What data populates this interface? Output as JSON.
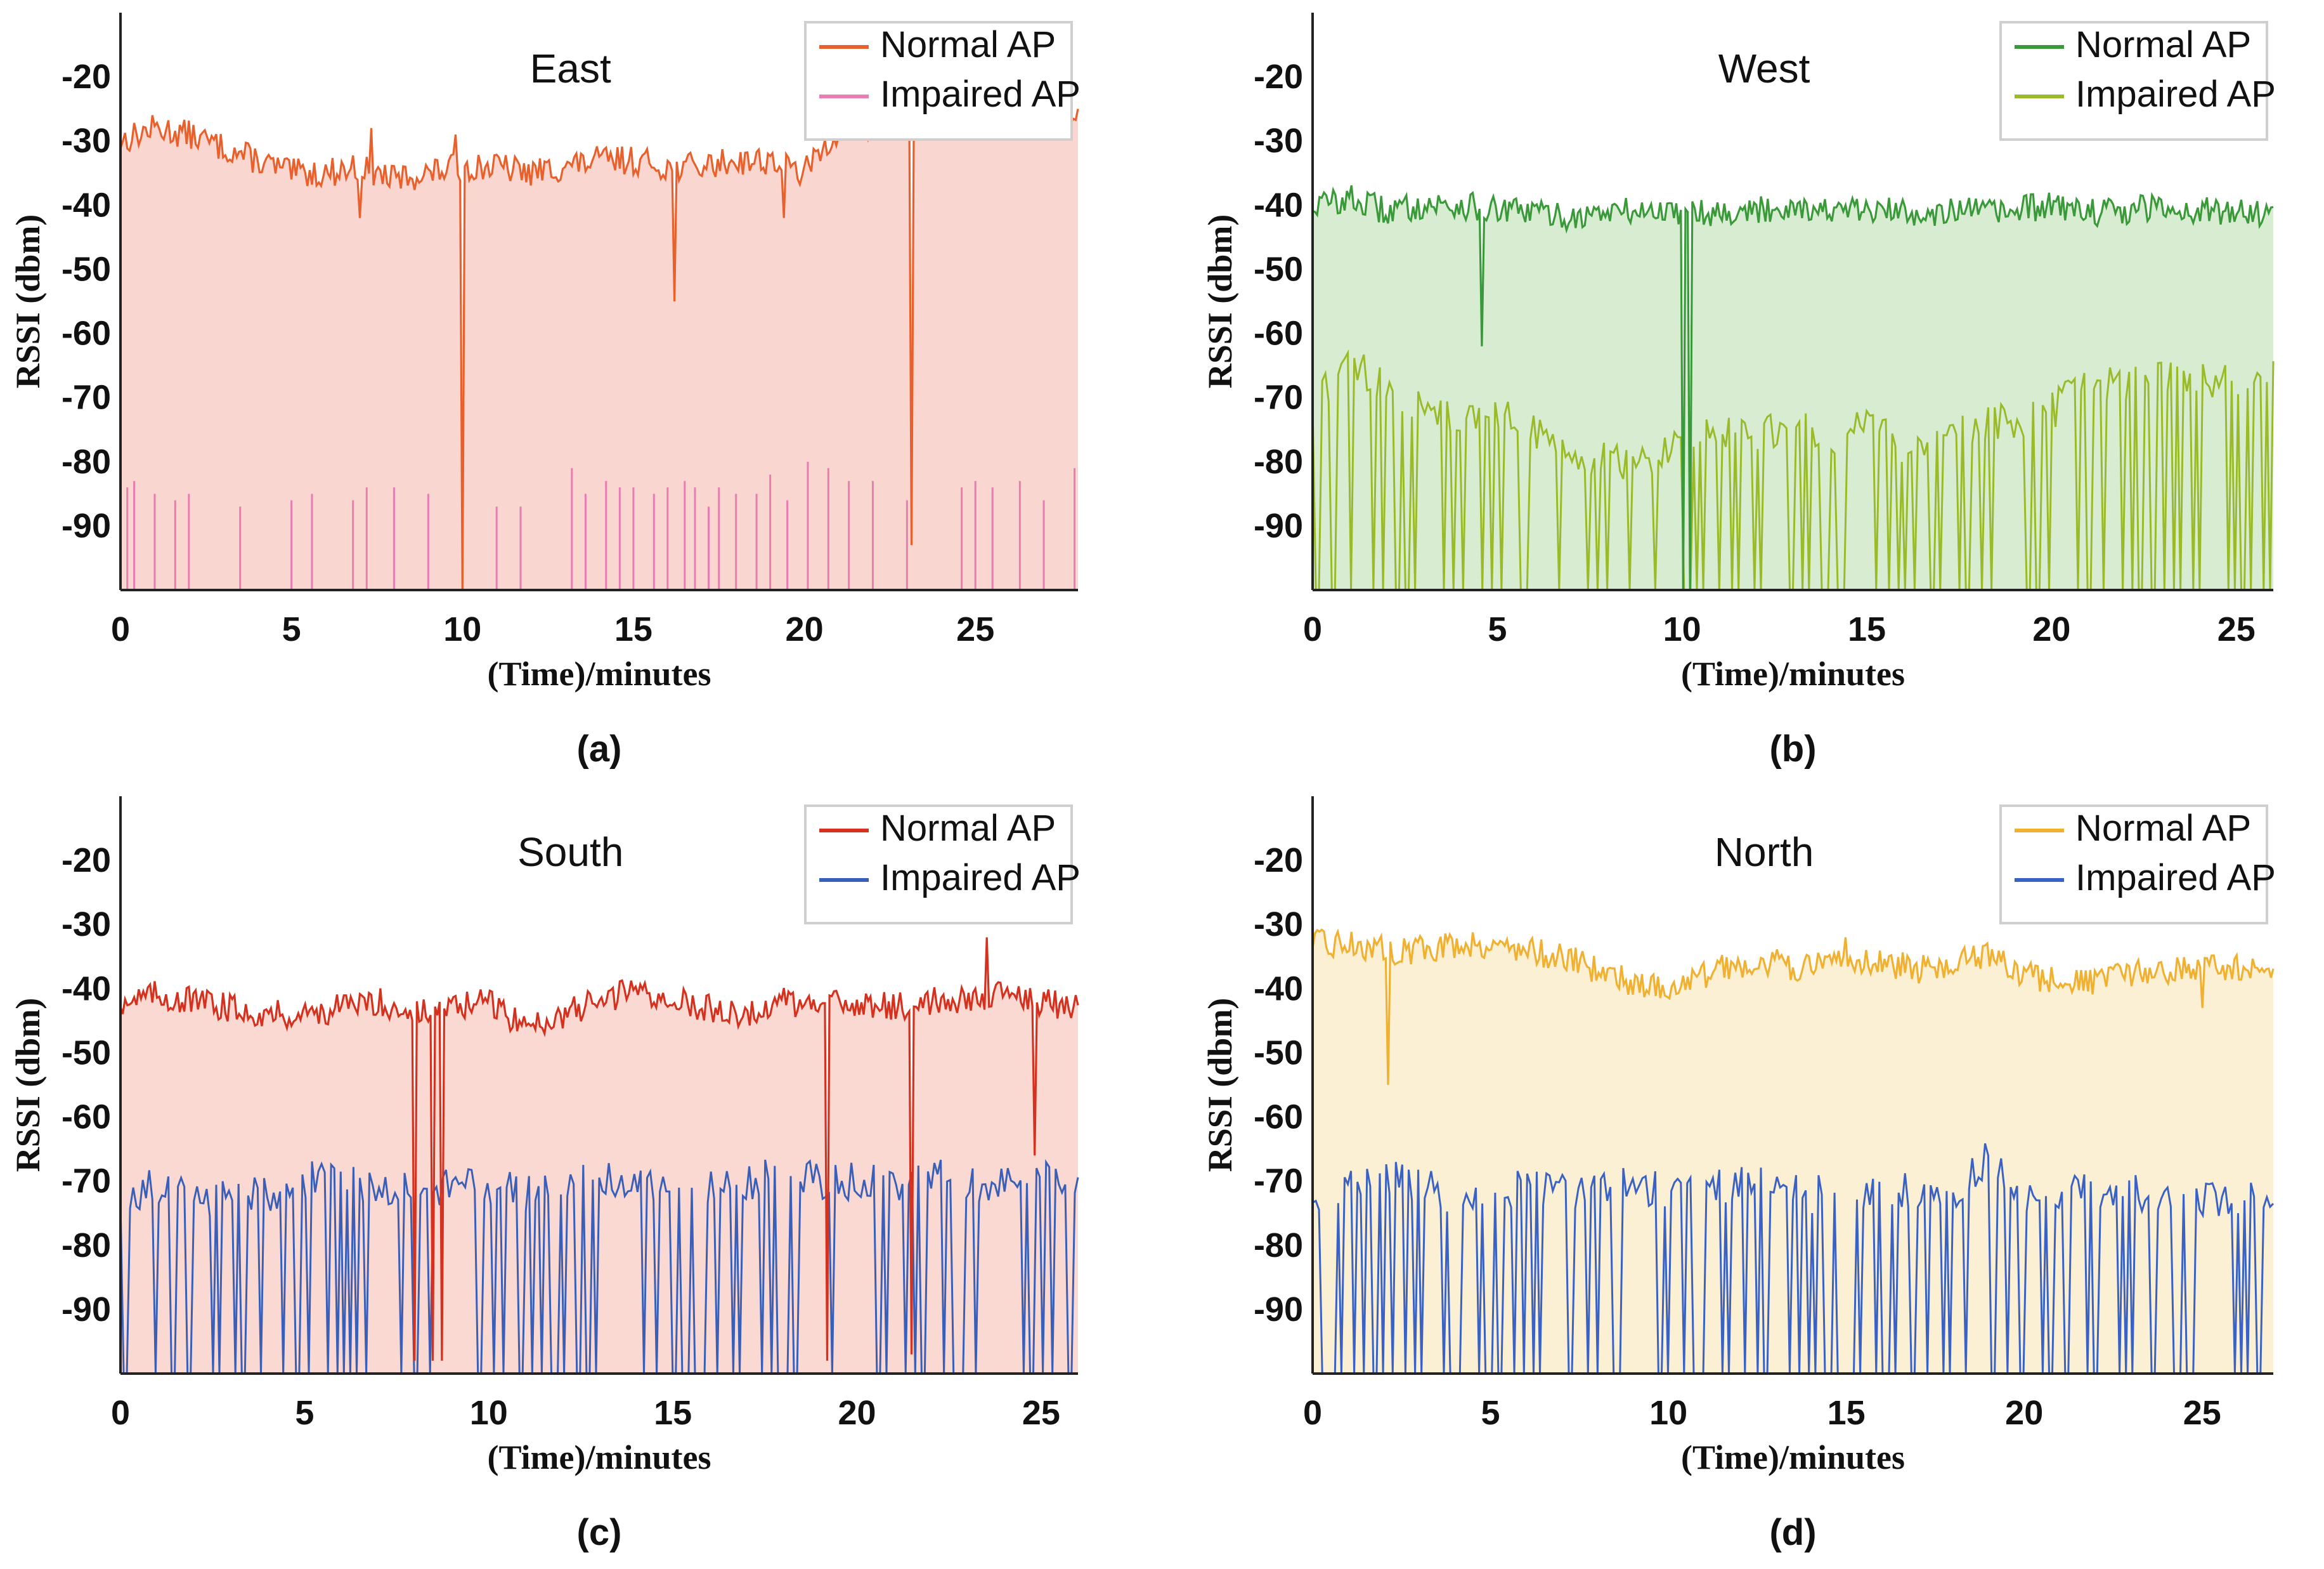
{
  "chart_data": [
    {
      "type": "line",
      "caption": "(a)",
      "title": "East",
      "xlabel": "(Time)/minutes",
      "ylabel": "RSSI  (dbm)",
      "xlim": [
        0,
        28
      ],
      "ylim": [
        -100,
        -10
      ],
      "x_ticks": [
        0,
        5,
        10,
        15,
        20,
        25
      ],
      "y_ticks": [
        -20,
        -30,
        -40,
        -50,
        -60,
        -70,
        -80,
        -90
      ],
      "legend_position": "top-right",
      "fill_color": "#f9d6cf",
      "series": [
        {
          "name": "Normal AP",
          "color": "#e8602c",
          "style": "noisy",
          "x": [
            0,
            1,
            2,
            3,
            4,
            5,
            6,
            7,
            8,
            9,
            10,
            11,
            12,
            13,
            14,
            15,
            16,
            17,
            18,
            19,
            20,
            21,
            22,
            23,
            24,
            25,
            26,
            27,
            28
          ],
          "y": [
            -30,
            -28,
            -29,
            -31,
            -33,
            -35,
            -35,
            -34,
            -36,
            -35,
            -34,
            -34,
            -35,
            -34,
            -33,
            -33,
            -34,
            -34,
            -33,
            -33,
            -35,
            -28,
            -28,
            -27,
            -27,
            -27,
            -27,
            -27,
            -26
          ],
          "spikes": [
            {
              "x": 7.0,
              "y": -42
            },
            {
              "x": 7.3,
              "y": -28
            },
            {
              "x": 9.8,
              "y": -29
            },
            {
              "x": 10.0,
              "y": -100
            },
            {
              "x": 16.2,
              "y": -55
            },
            {
              "x": 19.4,
              "y": -42
            },
            {
              "x": 23.1,
              "y": -93
            }
          ]
        },
        {
          "name": "Impaired AP",
          "color": "#e87db3",
          "style": "sparse",
          "base": -100,
          "x": [
            0.2,
            0.4,
            1.0,
            1.6,
            2.0,
            3.5,
            5.0,
            5.6,
            6.8,
            7.2,
            8.0,
            9.0,
            10.0,
            11.0,
            11.7,
            13.2,
            13.6,
            14.2,
            14.6,
            15.0,
            15.6,
            16.0,
            16.5,
            16.8,
            17.2,
            17.5,
            18.0,
            18.6,
            19.0,
            19.5,
            20.1,
            20.7,
            21.3,
            22.0,
            23.0,
            24.6,
            25.0,
            25.5,
            26.3,
            27.0,
            27.9
          ],
          "y": [
            -84,
            -83,
            -85,
            -86,
            -85,
            -87,
            -86,
            -85,
            -86,
            -84,
            -84,
            -85,
            -86,
            -87,
            -87,
            -81,
            -85,
            -83,
            -84,
            -84,
            -85,
            -84,
            -83,
            -84,
            -87,
            -84,
            -85,
            -85,
            -82,
            -86,
            -80,
            -81,
            -83,
            -83,
            -86,
            -84,
            -83,
            -84,
            -83,
            -86,
            -81
          ]
        }
      ]
    },
    {
      "type": "line",
      "caption": "(b)",
      "title": "West",
      "xlabel": "(Time)/minutes",
      "ylabel": "RSSI  (dbm)",
      "xlim": [
        0,
        26
      ],
      "ylim": [
        -100,
        -10
      ],
      "x_ticks": [
        0,
        5,
        10,
        15,
        20,
        25
      ],
      "y_ticks": [
        -20,
        -30,
        -40,
        -50,
        -60,
        -70,
        -80,
        -90
      ],
      "legend_position": "top-right",
      "fill_color": "#d8ecd2",
      "series": [
        {
          "name": "Normal AP",
          "color": "#3a9a3a",
          "style": "noisy",
          "x": [
            0,
            1,
            2,
            3,
            4,
            5,
            6,
            7,
            8,
            9,
            10,
            11,
            12,
            13,
            14,
            15,
            16,
            17,
            18,
            19,
            20,
            21,
            22,
            23,
            24,
            25,
            26
          ],
          "y": [
            -40,
            -39,
            -41,
            -40,
            -40,
            -41,
            -41,
            -42,
            -41,
            -41,
            -41,
            -41,
            -41,
            -40,
            -41,
            -41,
            -41,
            -41,
            -41,
            -41,
            -40,
            -41,
            -41,
            -40,
            -41,
            -41,
            -41
          ],
          "spikes": [
            {
              "x": 4.6,
              "y": -62
            },
            {
              "x": 10.0,
              "y": -100
            },
            {
              "x": 10.2,
              "y": -100
            }
          ]
        },
        {
          "name": "Impaired AP",
          "color": "#9aba2a",
          "style": "dense",
          "base": -100,
          "x": [
            0,
            1,
            2,
            3,
            4,
            5,
            6,
            7,
            8,
            9,
            10,
            11,
            12,
            13,
            14,
            15,
            16,
            17,
            18,
            19,
            20,
            21,
            22,
            23,
            24,
            25,
            26
          ],
          "y": [
            -70,
            -65,
            -68,
            -72,
            -73,
            -73,
            -75,
            -78,
            -80,
            -80,
            -76,
            -75,
            -76,
            -75,
            -76,
            -74,
            -78,
            -76,
            -74,
            -74,
            -72,
            -68,
            -68,
            -66,
            -67,
            -67,
            -67
          ]
        }
      ]
    },
    {
      "type": "line",
      "caption": "(c)",
      "title": "South",
      "xlabel": "(Time)/minutes",
      "ylabel": "RSSI  (dbm)",
      "xlim": [
        0,
        26
      ],
      "ylim": [
        -100,
        -10
      ],
      "x_ticks": [
        0,
        5,
        10,
        15,
        20,
        25
      ],
      "y_ticks": [
        -20,
        -30,
        -40,
        -50,
        -60,
        -70,
        -80,
        -90
      ],
      "legend_position": "top-right",
      "fill_color": "#fbd9d3",
      "series": [
        {
          "name": "Normal AP",
          "color": "#d4311e",
          "style": "noisy",
          "x": [
            0,
            1,
            2,
            3,
            4,
            5,
            6,
            7,
            8,
            9,
            10,
            11,
            12,
            13,
            14,
            15,
            16,
            17,
            18,
            19,
            20,
            21,
            22,
            23,
            24,
            25,
            26
          ],
          "y": [
            -42,
            -41,
            -42,
            -43,
            -44,
            -44,
            -43,
            -42,
            -44,
            -43,
            -42,
            -46,
            -44,
            -42,
            -40,
            -42,
            -43,
            -44,
            -42,
            -43,
            -42,
            -43,
            -42,
            -42,
            -40,
            -42,
            -43
          ],
          "spikes": [
            {
              "x": 8.0,
              "y": -98
            },
            {
              "x": 8.5,
              "y": -98
            },
            {
              "x": 8.7,
              "y": -98
            },
            {
              "x": 19.2,
              "y": -98
            },
            {
              "x": 21.5,
              "y": -97
            },
            {
              "x": 23.5,
              "y": -32
            },
            {
              "x": 24.8,
              "y": -66
            }
          ]
        },
        {
          "name": "Impaired AP",
          "color": "#3a5fb8",
          "style": "dense",
          "base": -100,
          "x": [
            0,
            1,
            2,
            3,
            4,
            5,
            6,
            7,
            8,
            9,
            10,
            11,
            12,
            13,
            14,
            15,
            16,
            17,
            18,
            19,
            20,
            21,
            22,
            23,
            24,
            25,
            26
          ],
          "y": [
            -72,
            -71,
            -73,
            -72,
            -72,
            -70,
            -69,
            -71,
            -72,
            -71,
            -71,
            -72,
            -71,
            -70,
            -70,
            -70,
            -71,
            -70,
            -69,
            -70,
            -70,
            -71,
            -69,
            -70,
            -71,
            -70,
            -70
          ]
        }
      ]
    },
    {
      "type": "line",
      "caption": "(d)",
      "title": "North",
      "xlabel": "(Time)/minutes",
      "ylabel": "RSSI  (dbm)",
      "xlim": [
        0,
        27
      ],
      "ylim": [
        -100,
        -10
      ],
      "x_ticks": [
        0,
        5,
        10,
        15,
        20,
        25
      ],
      "y_ticks": [
        -20,
        -30,
        -40,
        -50,
        -60,
        -70,
        -80,
        -90
      ],
      "legend_position": "top-right",
      "fill_color": "#fbefd4",
      "series": [
        {
          "name": "Normal AP",
          "color": "#f0b030",
          "style": "noisy",
          "x": [
            0,
            1,
            2,
            3,
            4,
            5,
            6,
            7,
            8,
            9,
            10,
            11,
            12,
            13,
            14,
            15,
            16,
            17,
            18,
            19,
            20,
            21,
            22,
            23,
            24,
            25,
            26,
            27
          ],
          "y": [
            -33,
            -33,
            -34,
            -34,
            -33,
            -33,
            -34,
            -35,
            -37,
            -39,
            -40,
            -38,
            -36,
            -36,
            -37,
            -35,
            -36,
            -37,
            -36,
            -35,
            -38,
            -39,
            -39,
            -38,
            -37,
            -37,
            -37,
            -37
          ],
          "spikes": [
            {
              "x": 2.1,
              "y": -55
            },
            {
              "x": 15.0,
              "y": -32
            },
            {
              "x": 25.0,
              "y": -43
            }
          ]
        },
        {
          "name": "Impaired AP",
          "color": "#3a62c4",
          "style": "dense",
          "base": -100,
          "x": [
            0,
            1,
            2,
            3,
            4,
            5,
            6,
            7,
            8,
            9,
            10,
            11,
            12,
            13,
            14,
            15,
            16,
            17,
            18,
            19,
            20,
            21,
            22,
            23,
            24,
            25,
            26,
            27
          ],
          "y": [
            -72,
            -70,
            -69,
            -71,
            -72,
            -72,
            -71,
            -72,
            -71,
            -70,
            -72,
            -71,
            -70,
            -71,
            -72,
            -72,
            -72,
            -71,
            -72,
            -66,
            -72,
            -72,
            -71,
            -72,
            -72,
            -73,
            -72,
            -72
          ]
        }
      ]
    }
  ]
}
